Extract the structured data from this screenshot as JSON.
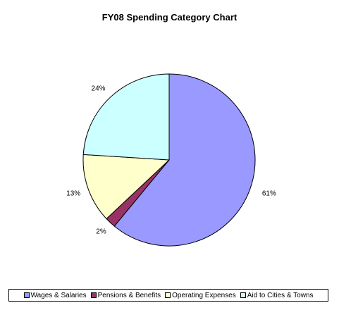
{
  "chart_data": {
    "type": "pie",
    "title": "FY08 Spending Category Chart",
    "legend_position": "bottom",
    "slices": [
      {
        "label": "Wages & Salaries",
        "value": 61,
        "value_label": "61%",
        "color": "#9999ff"
      },
      {
        "label": "Pensions & Benefits",
        "value": 2,
        "value_label": "2%",
        "color": "#993366"
      },
      {
        "label": "Operating Expenses",
        "value": 13,
        "value_label": "13%",
        "color": "#ffffcc"
      },
      {
        "label": "Aid to Cities & Towns",
        "value": 24,
        "value_label": "24%",
        "color": "#ccffff"
      }
    ]
  }
}
